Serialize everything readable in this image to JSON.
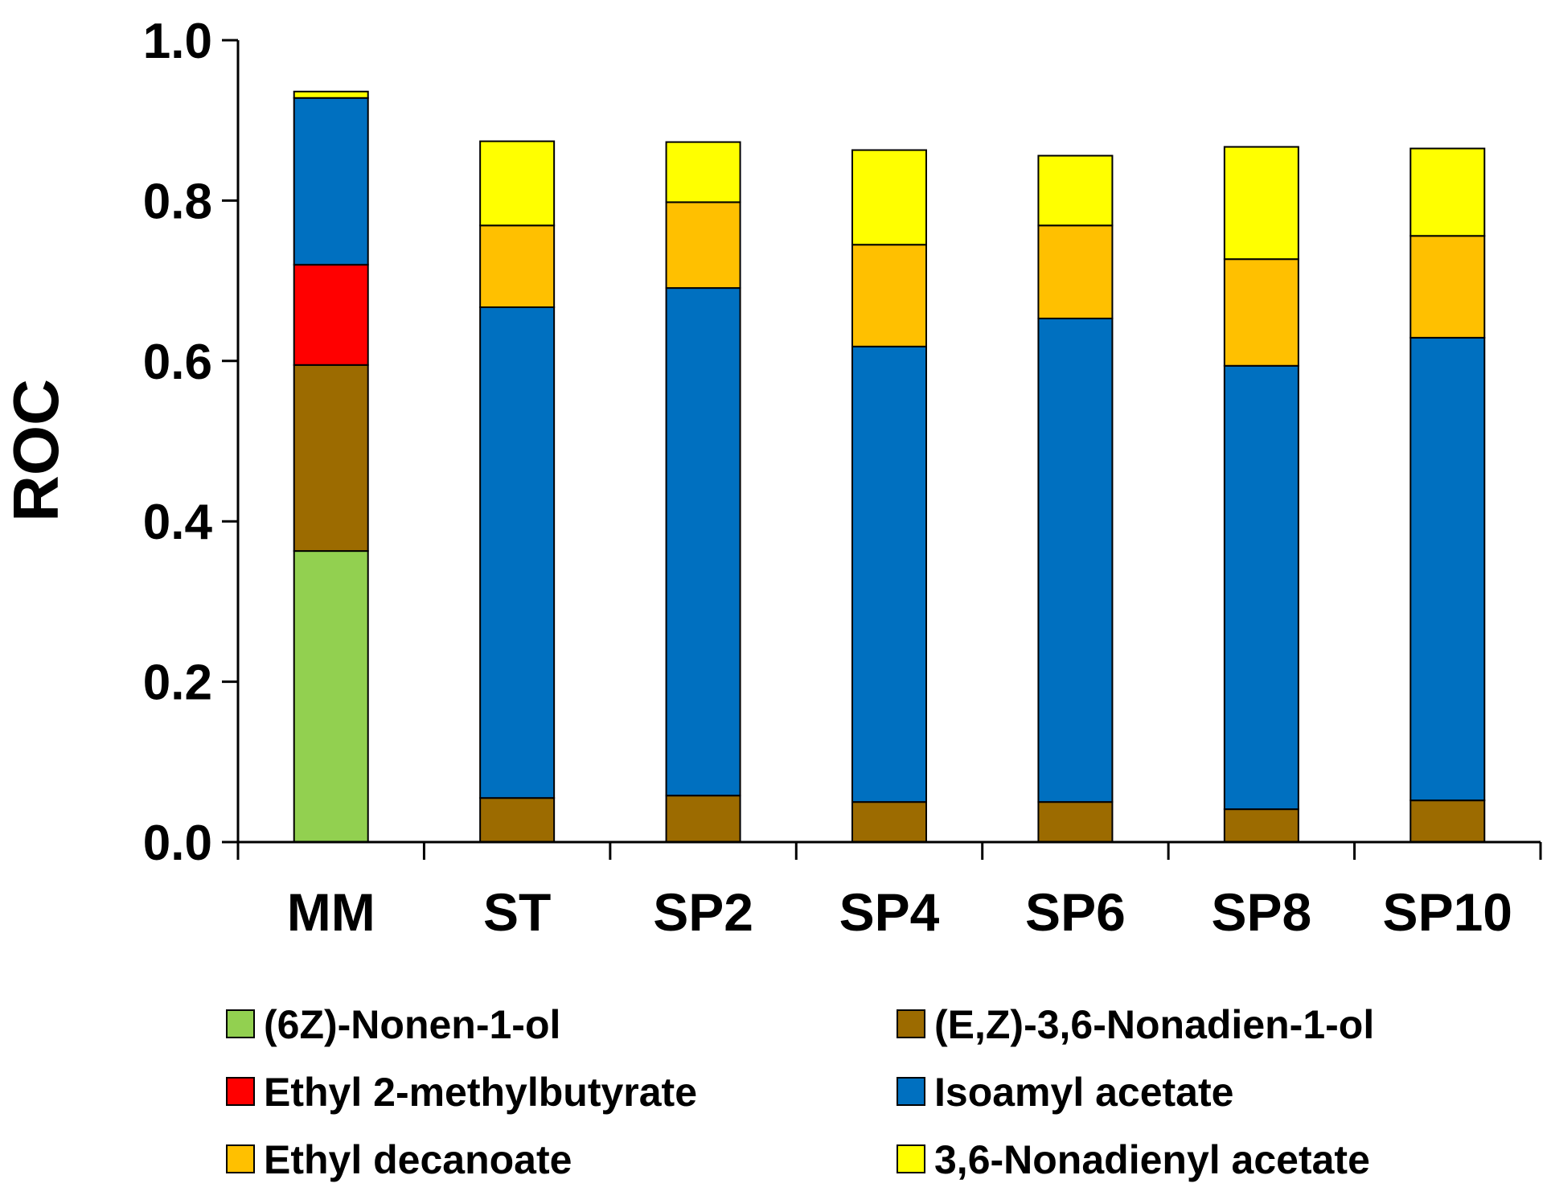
{
  "chart_data": {
    "type": "bar",
    "stacked": true,
    "title": "",
    "xlabel": "",
    "ylabel": "ROC",
    "ylim": [
      0,
      1.0
    ],
    "yticks": [
      "0.0",
      "0.2",
      "0.4",
      "0.6",
      "0.8",
      "1.0"
    ],
    "categories": [
      "MM",
      "ST",
      "SP2",
      "SP4",
      "SP6",
      "SP8",
      "SP10"
    ],
    "series": [
      {
        "name": "(6Z)-Nonen-1-ol",
        "color": "#92D050",
        "values": [
          0.363,
          0,
          0,
          0,
          0,
          0,
          0
        ]
      },
      {
        "name": "(E,Z)-3,6-Nonadien-1-ol",
        "color": "#9C6B00",
        "values": [
          0.232,
          0.055,
          0.058,
          0.05,
          0.05,
          0.041,
          0.052
        ]
      },
      {
        "name": "Ethyl 2-methylbutyrate",
        "color": "#FF0000",
        "values": [
          0.125,
          0,
          0,
          0,
          0,
          0,
          0
        ]
      },
      {
        "name": "Isoamyl acetate",
        "color": "#0070C0",
        "values": [
          0.208,
          0.612,
          0.633,
          0.568,
          0.603,
          0.553,
          0.577
        ]
      },
      {
        "name": "Ethyl decanoate",
        "color": "#FFC000",
        "values": [
          0,
          0.102,
          0.107,
          0.127,
          0.116,
          0.133,
          0.127
        ]
      },
      {
        "name": "3,6-Nonadienyl acetate",
        "color": "#FFFF00",
        "values": [
          0.008,
          0.105,
          0.075,
          0.118,
          0.087,
          0.14,
          0.109
        ]
      }
    ],
    "legend": {
      "placement": "bottom",
      "columns": 2,
      "entries": [
        "(6Z)-Nonen-1-ol",
        "(E,Z)-3,6-Nonadien-1-ol",
        "Ethyl 2-methylbutyrate",
        "Isoamyl acetate",
        "Ethyl decanoate",
        "3,6-Nonadienyl acetate"
      ]
    }
  }
}
